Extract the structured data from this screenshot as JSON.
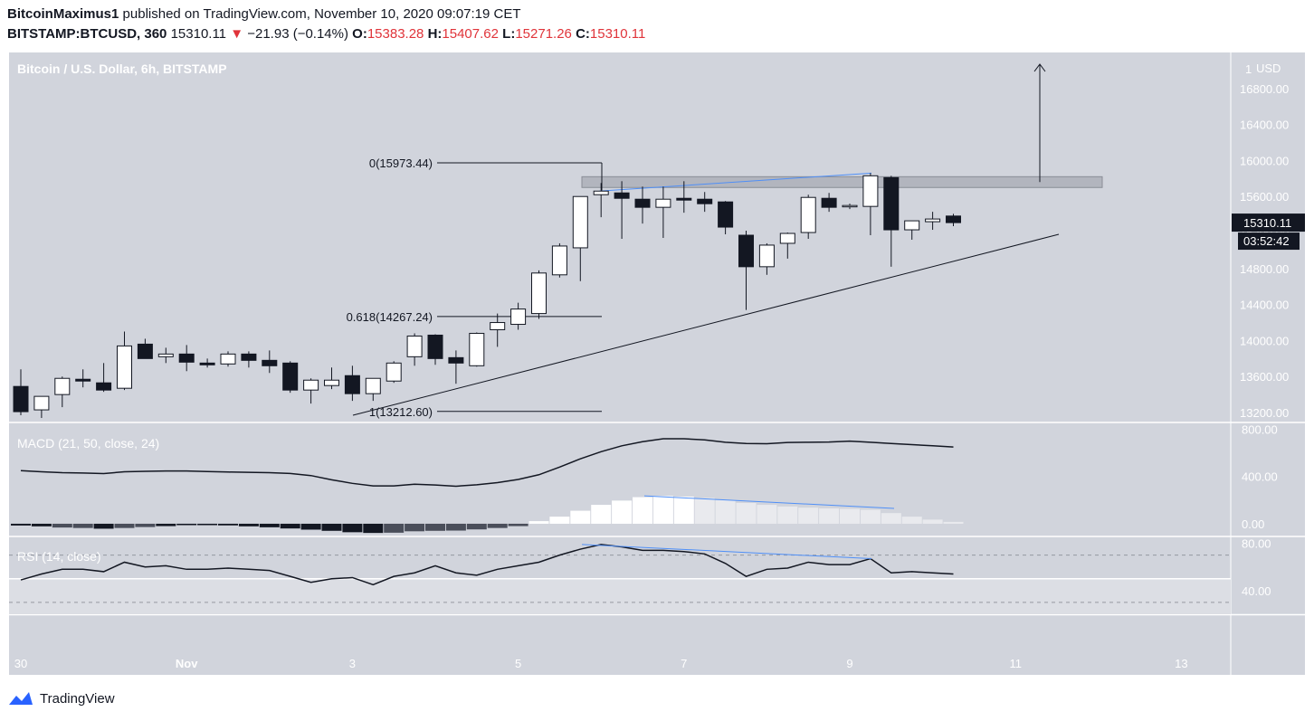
{
  "header": {
    "author": "BitcoinMaximus1",
    "published_text": " published on TradingView.com, November 10, 2020 09:07:19 CET",
    "symbol": "BITSTAMP:BTCUSD, 360",
    "last": "15310.11",
    "change_arrow": "▼",
    "change": "−21.93 (−0.14%)",
    "o_label": "O:",
    "o": "15383.28",
    "h_label": "H:",
    "h": "15407.62",
    "l_label": "L:",
    "l": "15271.26",
    "c_label": "C:",
    "c": "15310.11"
  },
  "footer": {
    "brand": "TradingView"
  },
  "colors": {
    "bg": "#d1d4dc",
    "bull": "#ffffff",
    "bear": "#131722",
    "annotation": "#4f8ff7",
    "price_tag": "#131722"
  },
  "chart_data": [
    {
      "type": "candlestick",
      "title": "Bitcoin / U.S. Dollar, 6h, BITSTAMP",
      "currency": "USD",
      "price_tag": "15310.11",
      "countdown": "03:52:42",
      "ylim": [
        13100,
        17200
      ],
      "y_ticks": [
        "16800.00",
        "16400.00",
        "16000.00",
        "15600.00",
        "15200.00",
        "14800.00",
        "14400.00",
        "14000.00",
        "13600.00",
        "13200.00"
      ],
      "top_tick_partial": "1",
      "x_ticks": [
        "30",
        "Nov",
        "3",
        "5",
        "7",
        "9",
        "11",
        "13"
      ],
      "candles": [
        [
          13490,
          13680,
          13170,
          13210
        ],
        [
          13230,
          13370,
          13140,
          13380
        ],
        [
          13400,
          13600,
          13260,
          13580
        ],
        [
          13570,
          13680,
          13480,
          13550
        ],
        [
          13530,
          13750,
          13430,
          13450
        ],
        [
          13470,
          14100,
          13450,
          13940
        ],
        [
          13960,
          14020,
          13800,
          13800
        ],
        [
          13820,
          13920,
          13750,
          13850
        ],
        [
          13850,
          13950,
          13660,
          13760
        ],
        [
          13750,
          13800,
          13700,
          13730
        ],
        [
          13740,
          13880,
          13710,
          13850
        ],
        [
          13850,
          13880,
          13700,
          13780
        ],
        [
          13780,
          13890,
          13640,
          13720
        ],
        [
          13750,
          13770,
          13420,
          13450
        ],
        [
          13450,
          13580,
          13300,
          13560
        ],
        [
          13500,
          13700,
          13460,
          13560
        ],
        [
          13610,
          13720,
          13330,
          13410
        ],
        [
          13410,
          13560,
          13330,
          13580
        ],
        [
          13550,
          13770,
          13530,
          13750
        ],
        [
          13820,
          14080,
          13720,
          14050
        ],
        [
          14060,
          14070,
          13730,
          13800
        ],
        [
          13810,
          13890,
          13520,
          13750
        ],
        [
          13720,
          14090,
          13710,
          14080
        ],
        [
          14120,
          14300,
          13930,
          14200
        ],
        [
          14180,
          14420,
          14120,
          14350
        ],
        [
          14300,
          14780,
          14240,
          14750
        ],
        [
          14730,
          15080,
          14700,
          15050
        ],
        [
          15030,
          15600,
          14660,
          15600
        ],
        [
          15620,
          15750,
          15370,
          15660
        ],
        [
          15640,
          15770,
          15130,
          15580
        ],
        [
          15570,
          15710,
          15300,
          15480
        ],
        [
          15480,
          15710,
          15140,
          15570
        ],
        [
          15580,
          15770,
          15420,
          15560
        ],
        [
          15570,
          15650,
          15430,
          15520
        ],
        [
          15540,
          15550,
          15180,
          15260
        ],
        [
          15170,
          15220,
          14340,
          14820
        ],
        [
          14820,
          15080,
          14730,
          15060
        ],
        [
          15080,
          15200,
          14910,
          15190
        ],
        [
          15200,
          15620,
          15130,
          15590
        ],
        [
          15580,
          15640,
          15430,
          15480
        ],
        [
          15490,
          15520,
          15460,
          15500
        ],
        [
          15490,
          15860,
          15170,
          15830
        ],
        [
          15810,
          15830,
          14820,
          15230
        ],
        [
          15230,
          15330,
          15120,
          15330
        ],
        [
          15320,
          15430,
          15230,
          15350
        ],
        [
          15383,
          15408,
          15271,
          15310
        ]
      ],
      "fib_levels": [
        {
          "label": "0(15973.44)",
          "value": 15973.44
        },
        {
          "label": "0.618(14267.24)",
          "value": 14267.24
        },
        {
          "label": "1(13212.60)",
          "value": 13212.6
        }
      ],
      "resistance_zone": [
        15700,
        15820
      ]
    },
    {
      "type": "line",
      "title": "MACD (21, 50, close, 24)",
      "y_ticks": [
        "800.00",
        "400.00",
        "0.00"
      ],
      "ylim": [
        -100,
        850
      ],
      "macd": [
        450,
        440,
        432,
        430,
        425,
        440,
        444,
        447,
        447,
        442,
        438,
        435,
        432,
        426,
        408,
        372,
        342,
        320,
        320,
        335,
        328,
        318,
        330,
        348,
        375,
        415,
        480,
        550,
        610,
        660,
        695,
        720,
        720,
        710,
        690,
        680,
        678,
        688,
        690,
        692,
        700,
        690,
        680,
        670,
        660,
        650
      ],
      "histogram": [
        -15,
        -22,
        -32,
        -36,
        -42,
        -36,
        -28,
        -20,
        -12,
        -12,
        -14,
        -22,
        -30,
        -40,
        -50,
        -60,
        -72,
        -78,
        -76,
        -64,
        -60,
        -58,
        -48,
        -36,
        -20,
        22,
        60,
        110,
        160,
        196,
        225,
        236,
        230,
        218,
        200,
        176,
        160,
        146,
        136,
        130,
        126,
        118,
        90,
        60,
        35,
        16
      ]
    },
    {
      "type": "line",
      "title": "RSI (14, close)",
      "y_ticks": [
        "80.00",
        "40.00"
      ],
      "ylim": [
        20,
        85
      ],
      "bands": [
        70,
        30
      ],
      "rsi": [
        49,
        54,
        58,
        58,
        56,
        64,
        60,
        61,
        58,
        58,
        59,
        58,
        57,
        52,
        47,
        50,
        51,
        45,
        52,
        55,
        61,
        55,
        53,
        58,
        61,
        64,
        70,
        75,
        79,
        77,
        74,
        74,
        73,
        71,
        63,
        52,
        58,
        59,
        64,
        62,
        62,
        67,
        55,
        56,
        55,
        54
      ]
    }
  ]
}
